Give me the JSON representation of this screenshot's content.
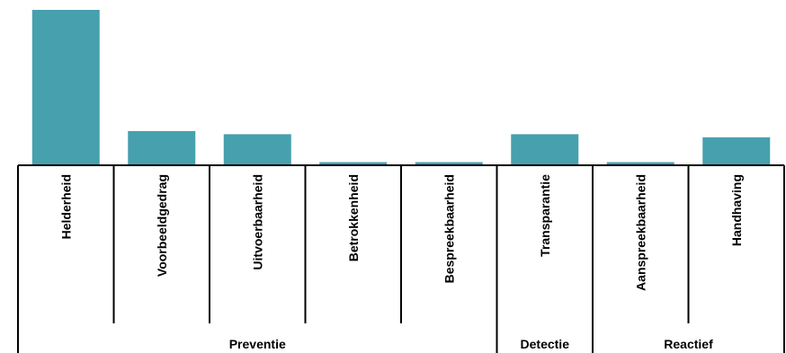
{
  "chart_data": {
    "type": "bar",
    "categories": [
      "Helderheid",
      "Voorbeeldgedrag",
      "Uitvoerbaarheid",
      "Betrokkenheid",
      "Bespreekbaarheid",
      "Transparantie",
      "Aanspreekbaarheid",
      "Handhaving"
    ],
    "values": [
      100,
      22,
      20,
      2,
      2,
      20,
      2,
      18
    ],
    "ylim": [
      0,
      100
    ],
    "grid": false,
    "bar_color": "#46a0ae",
    "groups": [
      {
        "label": "Preventie",
        "start": 0,
        "end": 4
      },
      {
        "label": "Detectie",
        "start": 5,
        "end": 5
      },
      {
        "label": "Reactief",
        "start": 6,
        "end": 7
      }
    ]
  }
}
